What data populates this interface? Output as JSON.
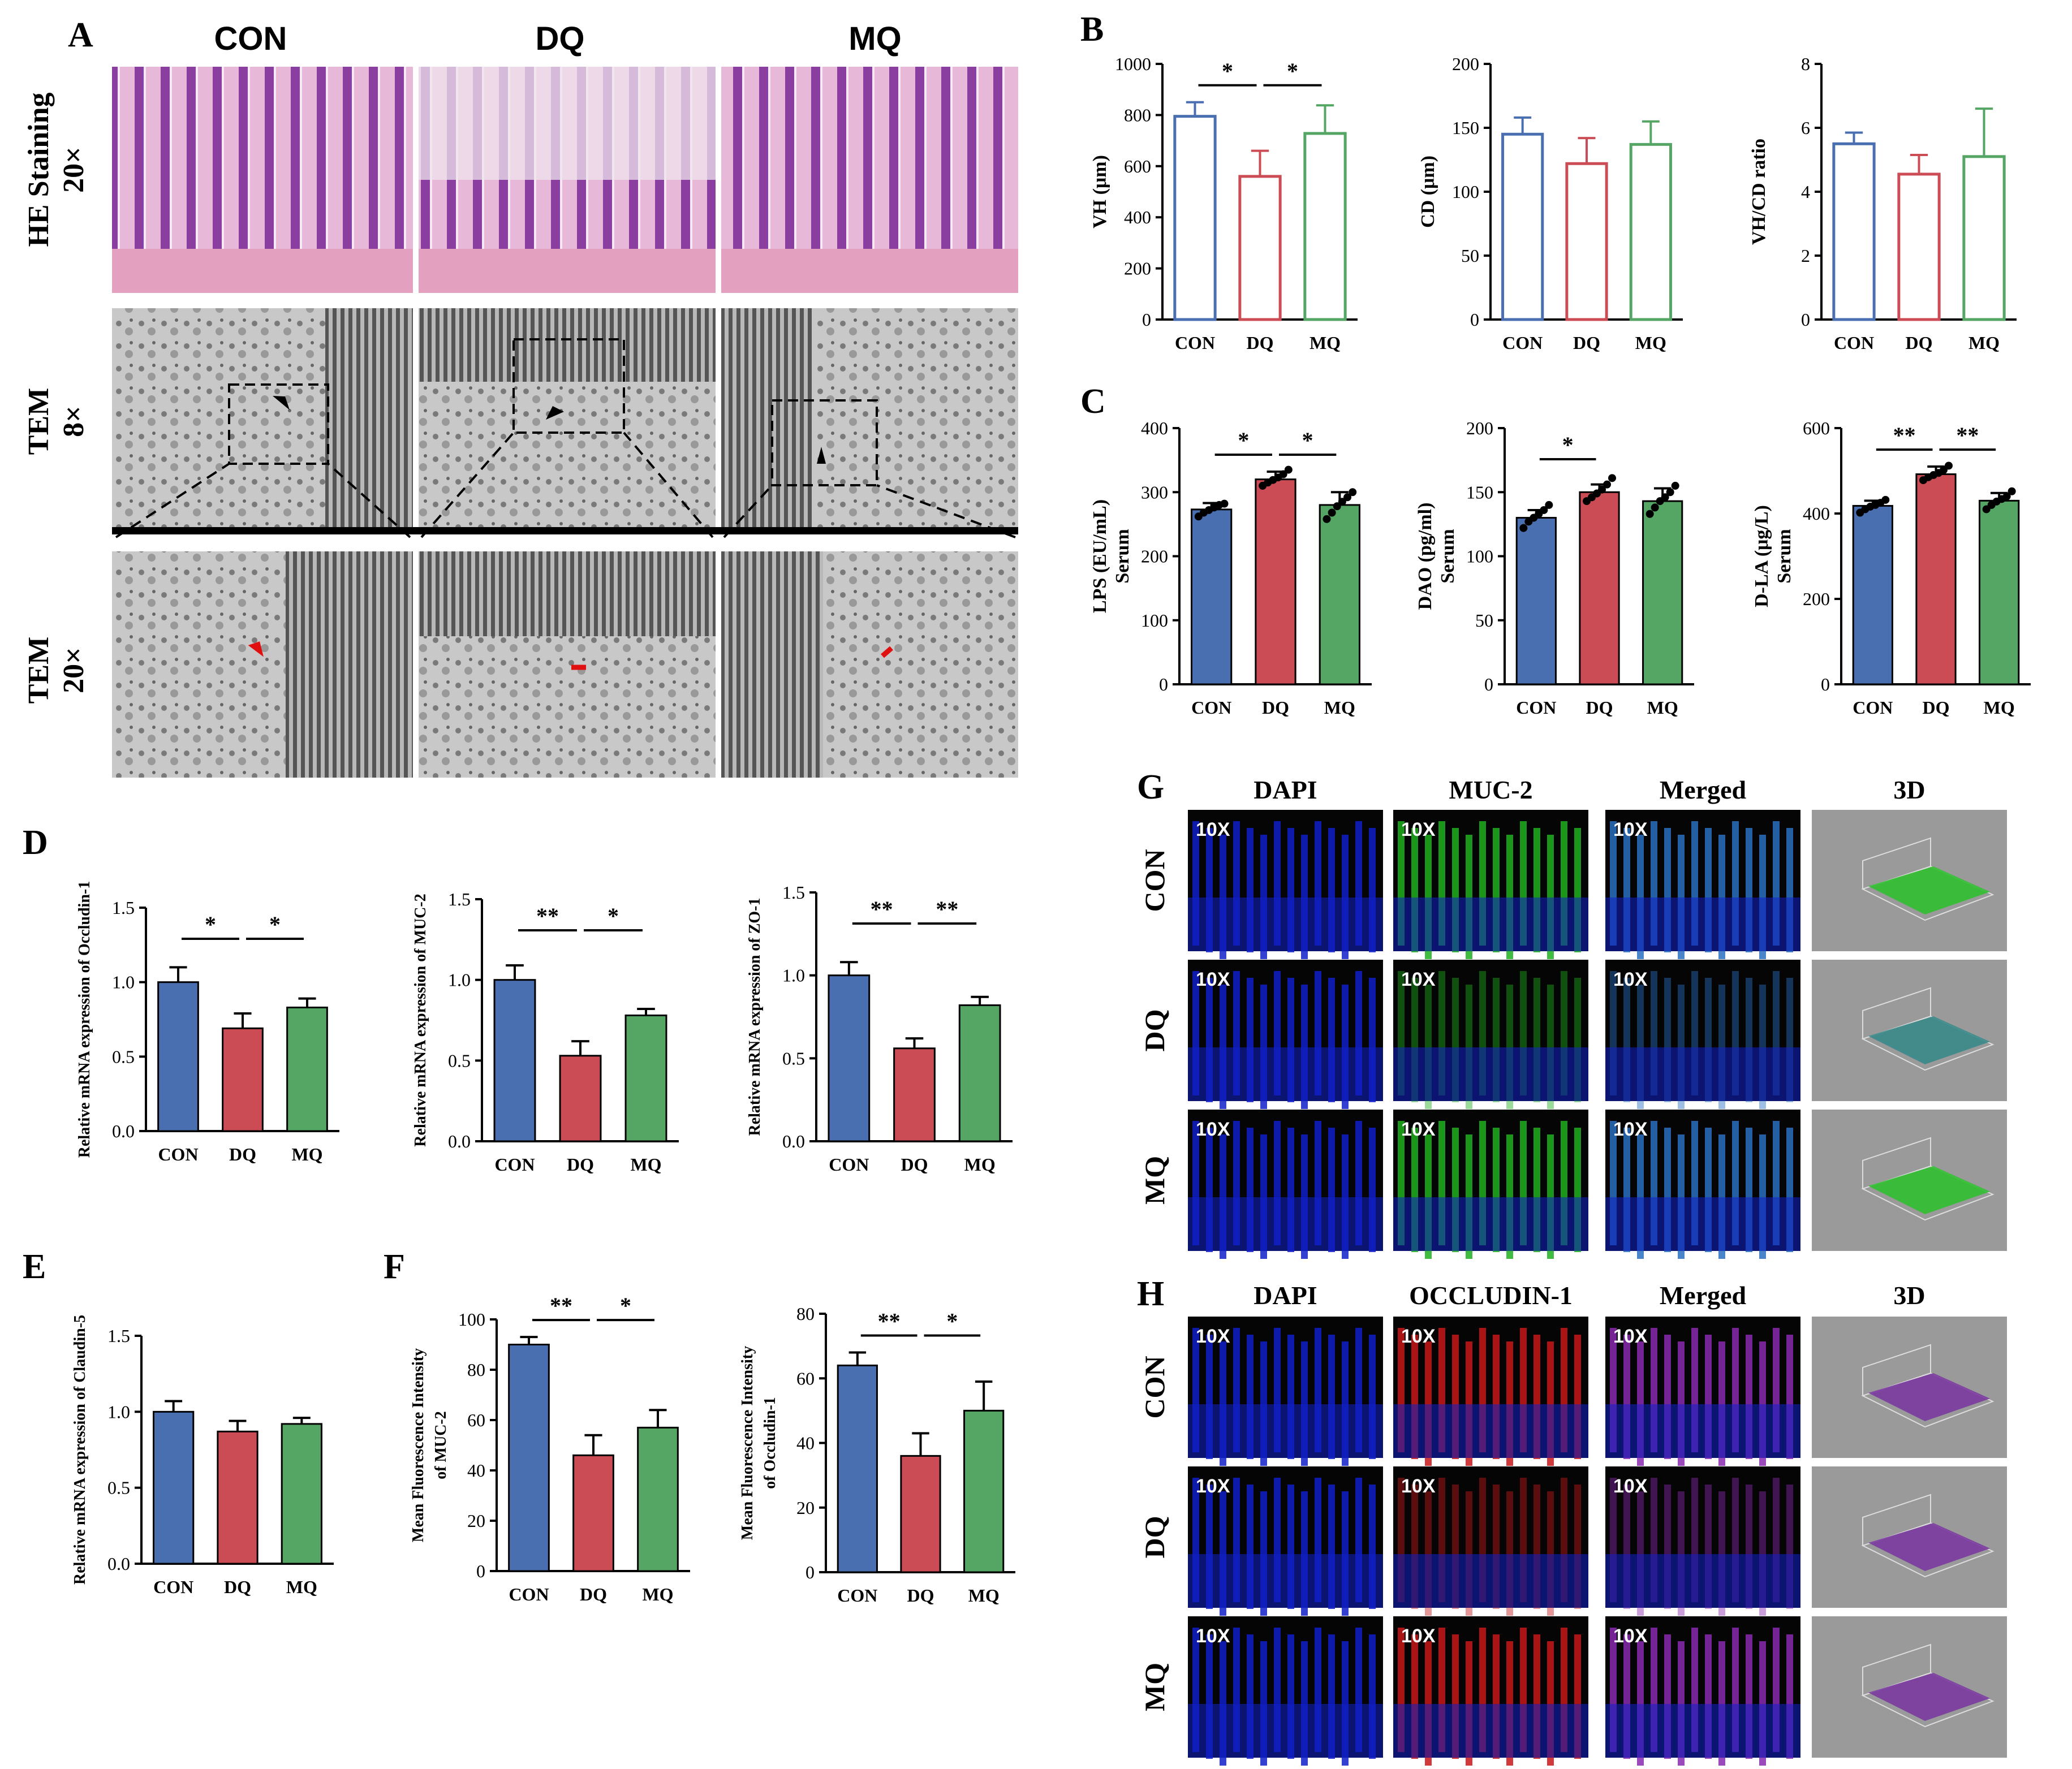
{
  "panel_letters": [
    "A",
    "B",
    "C",
    "D",
    "E",
    "F",
    "G",
    "H"
  ],
  "panelA": {
    "columns": [
      "CON",
      "DQ",
      "MQ"
    ],
    "rows": [
      {
        "line1": "HE Staining",
        "line2": "20×"
      },
      {
        "line1": "TEM",
        "line2": "8×"
      },
      {
        "line1": "TEM",
        "line2": "20×"
      }
    ]
  },
  "panelG": {
    "columns": [
      "DAPI",
      "MUC-2",
      "Merged",
      "3D"
    ],
    "rows": [
      "CON",
      "DQ",
      "MQ"
    ],
    "mag": "10X",
    "channel_colors": [
      "#1020c8",
      "#20b020",
      "#2a6ec0"
    ]
  },
  "panelH": {
    "columns": [
      "DAPI",
      "OCCLUDIN-1",
      "Merged",
      "3D"
    ],
    "rows": [
      "CON",
      "DQ",
      "MQ"
    ],
    "mag": "10X",
    "channel_colors": [
      "#1020c8",
      "#c81818",
      "#8a2ab0"
    ]
  },
  "colors": {
    "CON": "#4a6fb0",
    "DQ": "#cc4c55",
    "MQ": "#55a665"
  },
  "chart_data": [
    {
      "id": "B1",
      "panel": "B",
      "type": "bar",
      "style": "outline",
      "categories": [
        "CON",
        "DQ",
        "MQ"
      ],
      "values": [
        795,
        560,
        728
      ],
      "errors": [
        55,
        100,
        110
      ],
      "ylabel": "VH (μm)",
      "ylim": [
        0,
        1000
      ],
      "ticks": [
        0,
        200,
        400,
        600,
        800,
        1000
      ],
      "sig": [
        {
          "a": 0,
          "b": 1,
          "t": "*"
        },
        {
          "a": 1,
          "b": 2,
          "t": "*"
        }
      ]
    },
    {
      "id": "B2",
      "panel": "B",
      "type": "bar",
      "style": "outline",
      "categories": [
        "CON",
        "DQ",
        "MQ"
      ],
      "values": [
        145,
        122,
        137
      ],
      "errors": [
        13,
        20,
        18
      ],
      "ylabel": "CD (μm)",
      "ylim": [
        0,
        200
      ],
      "ticks": [
        0,
        50,
        100,
        150,
        200
      ],
      "sig": []
    },
    {
      "id": "B3",
      "panel": "B",
      "type": "bar",
      "style": "outline",
      "categories": [
        "CON",
        "DQ",
        "MQ"
      ],
      "values": [
        5.5,
        4.55,
        5.1
      ],
      "errors": [
        0.35,
        0.6,
        1.5
      ],
      "ylabel": "VH/CD ratio",
      "ylim": [
        0,
        8
      ],
      "ticks": [
        0,
        2,
        4,
        6,
        8
      ],
      "sig": []
    },
    {
      "id": "C1",
      "panel": "C",
      "type": "bar",
      "style": "fill",
      "categories": [
        "CON",
        "DQ",
        "MQ"
      ],
      "values": [
        273,
        320,
        280
      ],
      "errors": [
        10,
        12,
        20
      ],
      "ylabel": "LPS (EU/mL)",
      "ylabel2": "Serum",
      "ylim": [
        0,
        400
      ],
      "ticks": [
        0,
        100,
        200,
        300,
        400
      ],
      "sig": [
        {
          "a": 0,
          "b": 1,
          "t": "*"
        },
        {
          "a": 1,
          "b": 2,
          "t": "*"
        }
      ],
      "points": [
        [
          262,
          268,
          272,
          276,
          280,
          282
        ],
        [
          310,
          315,
          319,
          323,
          328,
          335
        ],
        [
          258,
          268,
          278,
          285,
          292,
          300
        ]
      ]
    },
    {
      "id": "C2",
      "panel": "C",
      "type": "bar",
      "style": "fill",
      "categories": [
        "CON",
        "DQ",
        "MQ"
      ],
      "values": [
        130,
        150,
        143
      ],
      "errors": [
        6,
        6,
        10
      ],
      "ylabel": "DAO (pg/ml)",
      "ylabel2": "Serum",
      "ylim": [
        0,
        200
      ],
      "ticks": [
        0,
        50,
        100,
        150,
        200
      ],
      "sig": [
        {
          "a": 0,
          "b": 1,
          "t": "*"
        }
      ],
      "points": [
        [
          122,
          127,
          130,
          133,
          136,
          140
        ],
        [
          143,
          146,
          149,
          152,
          156,
          161
        ],
        [
          133,
          138,
          143,
          146,
          150,
          155
        ]
      ]
    },
    {
      "id": "C3",
      "panel": "C",
      "type": "bar",
      "style": "fill",
      "categories": [
        "CON",
        "DQ",
        "MQ"
      ],
      "values": [
        418,
        492,
        430
      ],
      "errors": [
        12,
        18,
        18
      ],
      "ylabel": "D-LA (μg/L)",
      "ylabel2": "Serum",
      "ylim": [
        0,
        600
      ],
      "ticks": [
        0,
        200,
        400,
        600
      ],
      "sig": [
        {
          "a": 0,
          "b": 1,
          "t": "**"
        },
        {
          "a": 1,
          "b": 2,
          "t": "**"
        }
      ],
      "points": [
        [
          402,
          410,
          416,
          420,
          425,
          432
        ],
        [
          478,
          485,
          490,
          495,
          502,
          512
        ],
        [
          410,
          420,
          428,
          434,
          440,
          452
        ]
      ]
    },
    {
      "id": "D1",
      "panel": "D",
      "type": "bar",
      "style": "fill",
      "categories": [
        "CON",
        "DQ",
        "MQ"
      ],
      "values": [
        1.0,
        0.69,
        0.83
      ],
      "errors": [
        0.1,
        0.1,
        0.06
      ],
      "ylabel": "Relative mRNA expression of Occludin-1",
      "ylim": [
        0,
        1.5
      ],
      "ticks": [
        0.0,
        0.5,
        1.0,
        1.5
      ],
      "sig": [
        {
          "a": 0,
          "b": 1,
          "t": "*"
        },
        {
          "a": 1,
          "b": 2,
          "t": "*"
        }
      ]
    },
    {
      "id": "D2",
      "panel": "D",
      "type": "bar",
      "style": "fill",
      "categories": [
        "CON",
        "DQ",
        "MQ"
      ],
      "values": [
        1.0,
        0.53,
        0.78
      ],
      "errors": [
        0.09,
        0.09,
        0.04
      ],
      "ylabel": "Relative mRNA expression of MUC-2",
      "ylim": [
        0,
        1.5
      ],
      "ticks": [
        0.0,
        0.5,
        1.0,
        1.5
      ],
      "sig": [
        {
          "a": 0,
          "b": 1,
          "t": "**"
        },
        {
          "a": 1,
          "b": 2,
          "t": "*"
        }
      ]
    },
    {
      "id": "D3",
      "panel": "D",
      "type": "bar",
      "style": "fill",
      "categories": [
        "CON",
        "DQ",
        "MQ"
      ],
      "values": [
        1.0,
        0.56,
        0.82
      ],
      "errors": [
        0.08,
        0.06,
        0.05
      ],
      "ylabel": "Relative mRNA expression of ZO-1",
      "ylim": [
        0,
        1.5
      ],
      "ticks": [
        0.0,
        0.5,
        1.0,
        1.5
      ],
      "sig": [
        {
          "a": 0,
          "b": 1,
          "t": "**"
        },
        {
          "a": 1,
          "b": 2,
          "t": "**"
        }
      ]
    },
    {
      "id": "E1",
      "panel": "E",
      "type": "bar",
      "style": "fill",
      "categories": [
        "CON",
        "DQ",
        "MQ"
      ],
      "values": [
        1.0,
        0.87,
        0.92
      ],
      "errors": [
        0.07,
        0.07,
        0.04
      ],
      "ylabel": "Relative mRNA expression of Claudin-5",
      "ylim": [
        0,
        1.5
      ],
      "ticks": [
        0.0,
        0.5,
        1.0,
        1.5
      ],
      "sig": []
    },
    {
      "id": "F1",
      "panel": "F",
      "type": "bar",
      "style": "fill",
      "categories": [
        "CON",
        "DQ",
        "MQ"
      ],
      "values": [
        90,
        46,
        57
      ],
      "errors": [
        3,
        8,
        7
      ],
      "ylabel": "Mean Fluorescence Intensity",
      "ylabel2": "of MUC-2",
      "ylim": [
        0,
        100
      ],
      "ticks": [
        0,
        20,
        40,
        60,
        80,
        100
      ],
      "sig": [
        {
          "a": 0,
          "b": 1,
          "t": "**"
        },
        {
          "a": 1,
          "b": 2,
          "t": "*"
        }
      ]
    },
    {
      "id": "F2",
      "panel": "F",
      "type": "bar",
      "style": "fill",
      "categories": [
        "CON",
        "DQ",
        "MQ"
      ],
      "values": [
        64,
        36,
        50
      ],
      "errors": [
        4,
        7,
        9
      ],
      "ylabel": "Mean Fluorescence Intensity",
      "ylabel2": "of Occludin-1",
      "ylim": [
        0,
        80
      ],
      "ticks": [
        0,
        20,
        40,
        60,
        80
      ],
      "sig": [
        {
          "a": 0,
          "b": 1,
          "t": "**"
        },
        {
          "a": 1,
          "b": 2,
          "t": "*"
        }
      ]
    }
  ]
}
